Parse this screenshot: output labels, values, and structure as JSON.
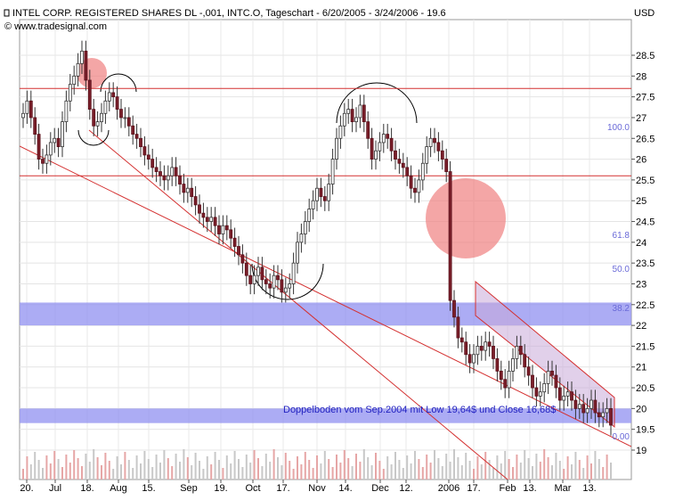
{
  "chart_data": {
    "type": "candlestick",
    "title": "INTEL CORP. REGISTERED SHARES DL -,001, INTC.O, Tageschart - 6/20/2005 - 3/24/2006 - 19.6",
    "source": "© www.tradesignal.com",
    "currency": "USD",
    "ylim": [
      18.7,
      29.1
    ],
    "y_ticks": [
      "28.5",
      "28",
      "27.5",
      "27",
      "26.5",
      "26",
      "25.5",
      "25",
      "24.5",
      "24",
      "23.5",
      "23",
      "22.5",
      "22",
      "21.5",
      "21",
      "20.5",
      "20",
      "19.5",
      "19"
    ],
    "x_ticks": [
      "20.",
      "Jul",
      "18.",
      "Aug",
      "15.",
      "Sep",
      "19.",
      "Oct",
      "17.",
      "Nov",
      "14.",
      "Dec",
      "12.",
      "2006",
      "17.",
      "Feb",
      "13.",
      "Mar",
      "13."
    ],
    "fib_labels": [
      "100.0",
      "61.8",
      "50.0",
      "38.2",
      "0.00"
    ],
    "horizontal_lines": [
      27.7,
      25.6
    ],
    "support_bands": [
      [
        22.0,
        22.55
      ],
      [
        19.65,
        20.0
      ]
    ],
    "annotation": "Doppelboden vom Sep.2004 mit Low 19,64$ und Close 16,68$",
    "series": [
      {
        "name": "INTC.O",
        "close": [
          27.1,
          27.4,
          27.0,
          26.6,
          26.0,
          25.9,
          26.1,
          26.4,
          26.5,
          26.3,
          26.9,
          27.4,
          27.8,
          28.0,
          28.3,
          28.6,
          27.9,
          27.2,
          26.8,
          26.9,
          27.1,
          27.4,
          27.6,
          27.5,
          27.2,
          27.0,
          27.0,
          26.8,
          26.6,
          26.5,
          26.3,
          26.1,
          26.0,
          25.8,
          25.7,
          25.6,
          25.5,
          25.6,
          25.8,
          25.6,
          25.4,
          25.2,
          25.3,
          25.1,
          24.9,
          24.7,
          24.6,
          24.5,
          24.6,
          24.4,
          24.2,
          24.4,
          24.3,
          24.1,
          23.9,
          23.7,
          23.5,
          23.2,
          23.0,
          23.2,
          23.4,
          23.1,
          23.0,
          22.9,
          23.2,
          23.1,
          22.8,
          22.9,
          23.0,
          23.5,
          24.0,
          24.2,
          24.5,
          24.8,
          25.0,
          25.3,
          25.1,
          25.0,
          25.4,
          26.0,
          26.5,
          26.8,
          27.1,
          27.2,
          26.9,
          27.0,
          27.3,
          26.9,
          26.5,
          26.0,
          26.2,
          26.4,
          26.6,
          26.5,
          26.2,
          26.0,
          25.9,
          25.8,
          25.6,
          25.3,
          25.2,
          25.5,
          25.9,
          26.3,
          26.5,
          26.4,
          26.2,
          26.0,
          25.7,
          22.6,
          22.2,
          21.7,
          21.6,
          21.3,
          21.1,
          21.3,
          21.5,
          21.4,
          21.6,
          21.5,
          21.2,
          20.9,
          20.7,
          20.5,
          20.9,
          21.2,
          21.5,
          21.3,
          21.0,
          20.8,
          20.5,
          20.3,
          20.4,
          20.6,
          20.9,
          20.8,
          20.5,
          20.2,
          20.3,
          20.4,
          20.2,
          20.0,
          20.1,
          19.9,
          20.0,
          20.2,
          19.9,
          19.8,
          19.9,
          20.0,
          19.6
        ]
      }
    ]
  }
}
